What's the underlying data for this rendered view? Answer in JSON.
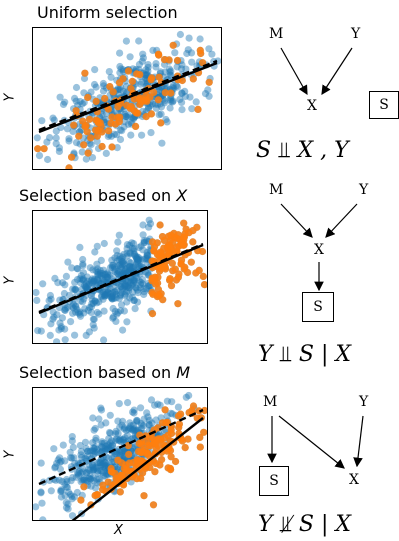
{
  "panels": [
    {
      "title": "Uniform selection",
      "ylabel": "Y",
      "dag": {
        "nodes": [
          "M",
          "Y",
          "X"
        ],
        "box": "S",
        "formula": {
          "left": "S",
          "sym": "⫫",
          "right": "X , Y"
        }
      }
    },
    {
      "title_prefix": "Selection based on ",
      "title_var": "X",
      "ylabel": "Y",
      "dag": {
        "nodes": [
          "M",
          "Y",
          "X"
        ],
        "box": "S",
        "formula": {
          "left": "Y",
          "sym": "⫫",
          "right": "S | X"
        }
      }
    },
    {
      "title_prefix": "Selection based on ",
      "title_var": "M",
      "ylabel": "Y",
      "xlabel": "X",
      "dag": {
        "nodes": [
          "M",
          "Y",
          "X"
        ],
        "box": "S",
        "formula": {
          "left": "Y",
          "sym": "⫫̸",
          "right": "S | X"
        }
      }
    }
  ],
  "colors": {
    "population": "#1f77b4",
    "selected": "#ff7f0e",
    "line": "#000000"
  }
}
